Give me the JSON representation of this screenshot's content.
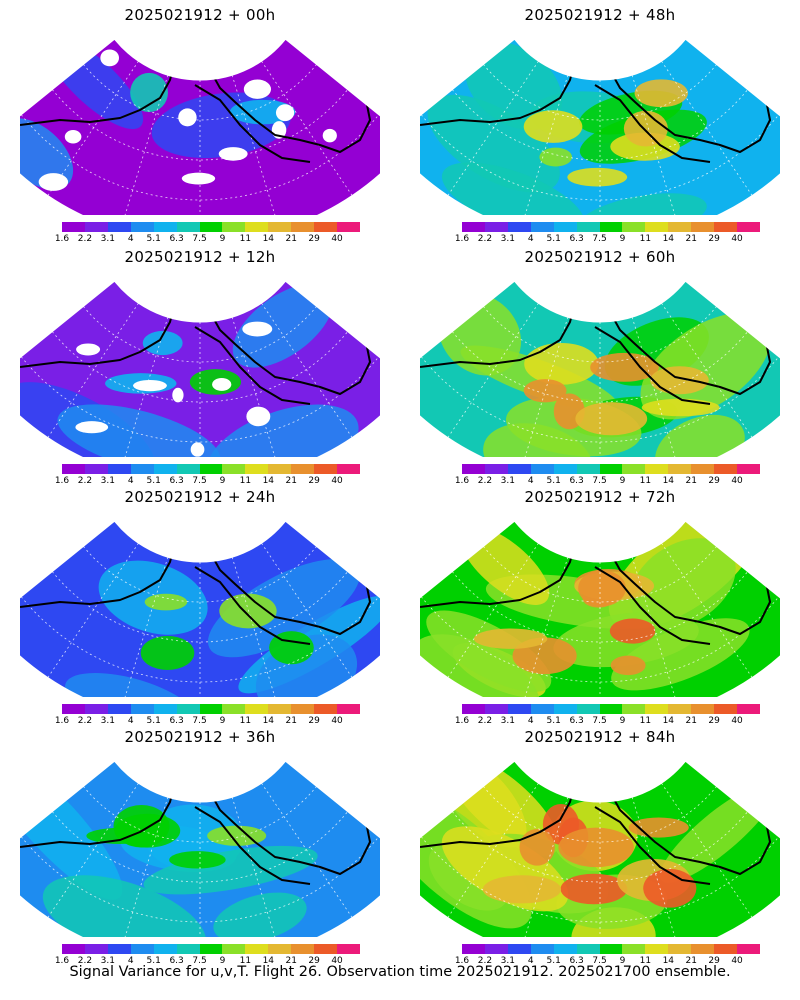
{
  "panels": [
    {
      "title": "2025021912 + 00h",
      "level": 0
    },
    {
      "title": "2025021912 + 48h",
      "level": 4
    },
    {
      "title": "2025021912 + 12h",
      "level": 1
    },
    {
      "title": "2025021912 + 60h",
      "level": 5
    },
    {
      "title": "2025021912 + 24h",
      "level": 2
    },
    {
      "title": "2025021912 + 72h",
      "level": 6
    },
    {
      "title": "2025021912 + 36h",
      "level": 3
    },
    {
      "title": "2025021912 + 84h",
      "level": 7
    }
  ],
  "colorbar": {
    "colors": [
      "#9400d3",
      "#7a1fe6",
      "#2e48f2",
      "#1e8cf0",
      "#10b2ee",
      "#12c8b4",
      "#00d000",
      "#8ae028",
      "#dede1e",
      "#e4b832",
      "#e8902e",
      "#ec5a28",
      "#ec1a7a"
    ],
    "labels": [
      "1.6",
      "2.2",
      "3.1",
      "4",
      "5.1",
      "6.3",
      "7.5",
      "9",
      "11",
      "14",
      "21",
      "29",
      "40"
    ]
  },
  "footer": "Signal Variance for u,v,T. Flight 26. Observation time 2025021912. 2025021700 ensemble."
}
